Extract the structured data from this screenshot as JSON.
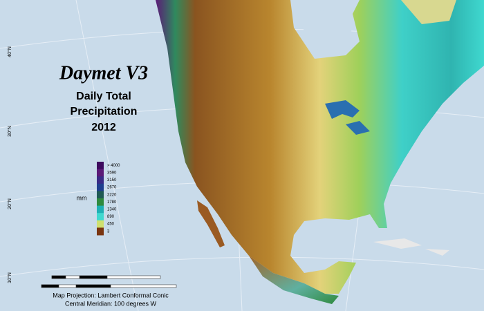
{
  "title": "Daymet V3",
  "subtitle": [
    "Daily Total",
    "Precipitation",
    "2012"
  ],
  "legend": {
    "unit": "mm",
    "entries": [
      {
        "label": "> 4000",
        "color": "#3d0a5e"
      },
      {
        "label": "3590",
        "color": "#5b1a78"
      },
      {
        "label": "3150",
        "color": "#3a2a86"
      },
      {
        "label": "2670",
        "color": "#1f3f8f"
      },
      {
        "label": "2220",
        "color": "#1f5a55"
      },
      {
        "label": "1780",
        "color": "#2f8a3e"
      },
      {
        "label": "1340",
        "color": "#1fb0b4"
      },
      {
        "label": "890",
        "color": "#3fd8cf"
      },
      {
        "label": "450",
        "color": "#cfe070"
      },
      {
        "label": "3",
        "color": "#7a3510"
      }
    ]
  },
  "graticule_labels": [
    "40°N",
    "30°N",
    "20°N",
    "10°N"
  ],
  "footer": [
    "Map Projection:  Lambert Conformal Conic",
    "Central Meridian: 100 degrees W"
  ]
}
